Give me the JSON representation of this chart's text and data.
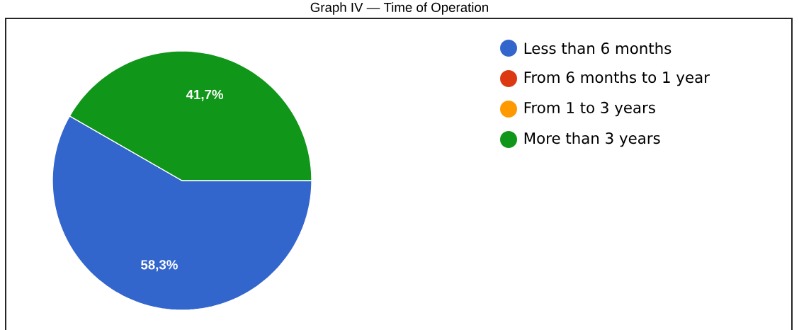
{
  "chart_data": {
    "type": "pie",
    "title": "Graph IV — Time of Operation",
    "categories": [
      "Less than 6 months",
      "From 6 months to 1 year",
      "From 1 to 3 years",
      "More than 3 years"
    ],
    "values": [
      58.3,
      0,
      0,
      41.7
    ],
    "colors": [
      "#3366cc",
      "#dc3912",
      "#ff9900",
      "#109618"
    ],
    "value_labels": [
      "58,3%",
      null,
      null,
      "41,7%"
    ],
    "legend": "right"
  }
}
